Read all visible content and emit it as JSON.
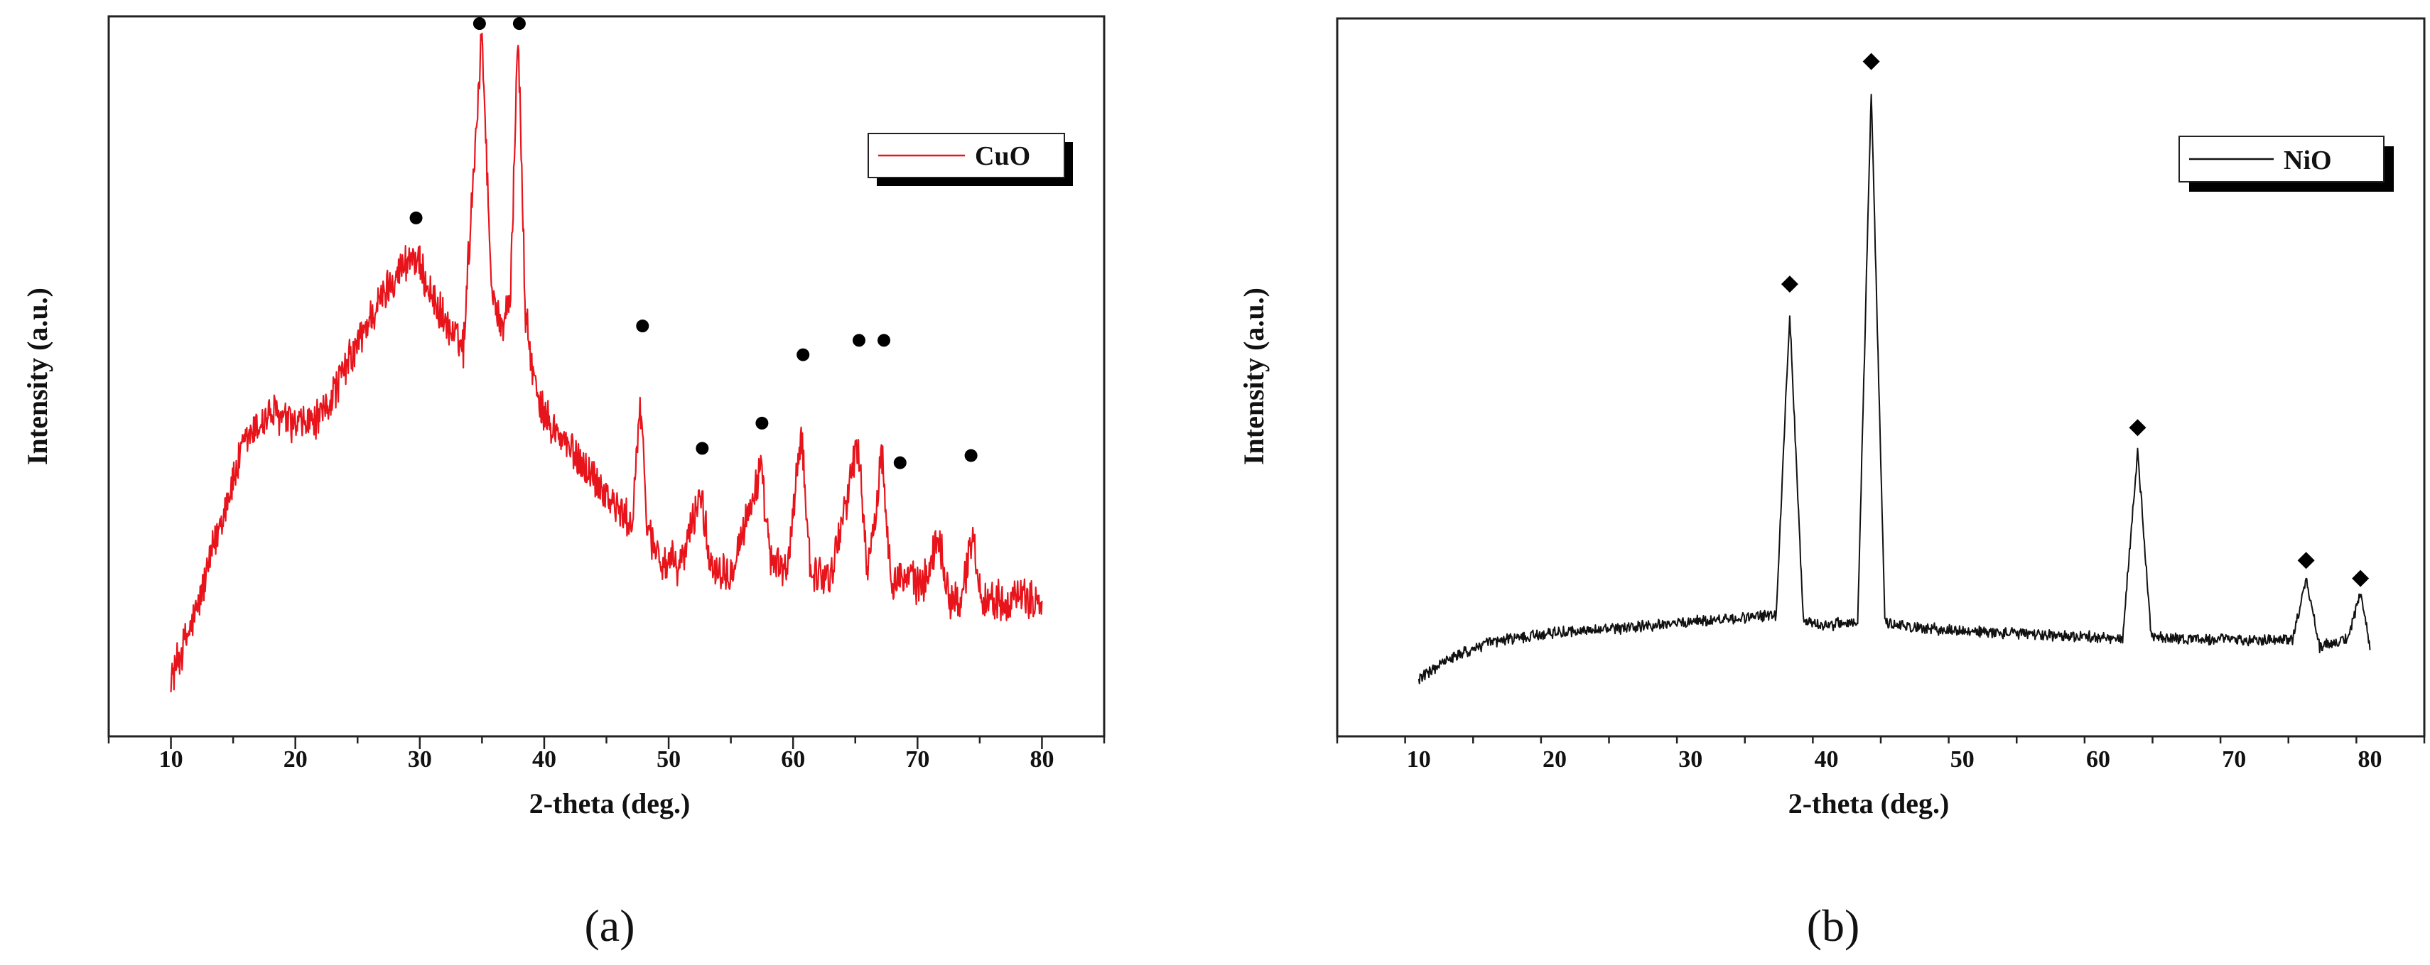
{
  "chart_data": [
    {
      "type": "line",
      "panel_label": "(a)",
      "xlabel": "2-theta (deg.)",
      "ylabel": "Intensity (a.u.)",
      "xlim": [
        5,
        85
      ],
      "ylim": [
        0,
        100
      ],
      "xticks": [
        10,
        20,
        30,
        40,
        50,
        60,
        70,
        80
      ],
      "legend": "CuO",
      "legend_position": "top-right",
      "color": "#e8141b",
      "noise": 3.2,
      "marker": "circle",
      "series": [
        {
          "name": "CuO",
          "x": [
            10,
            12,
            14,
            16,
            18,
            20,
            22,
            24,
            26,
            28,
            29.5,
            31,
            32.5,
            33.5,
            34.3,
            35,
            35.7,
            36.5,
            37.3,
            37.9,
            38.5,
            39.5,
            41,
            44,
            47,
            47.7,
            48.3,
            49.5,
            51,
            52.6,
            53.3,
            55,
            57.4,
            58.2,
            59.5,
            60.7,
            61.4,
            63,
            65.2,
            66,
            66.4,
            67.1,
            67.9,
            69,
            70.5,
            71.7,
            72.6,
            73.5,
            74.4,
            75.2,
            77,
            80
          ],
          "y": [
            8,
            17,
            30,
            41,
            45,
            43,
            44,
            51,
            58,
            64,
            67,
            61,
            56,
            54,
            78,
            98,
            64,
            56,
            62,
            98,
            58,
            46,
            42,
            36,
            29,
            46,
            29,
            24,
            24,
            34,
            24,
            23,
            37,
            24,
            23,
            42,
            23,
            22,
            41,
            23,
            27,
            40,
            22,
            22,
            21,
            28,
            19,
            19,
            28,
            19,
            19,
            19
          ]
        }
      ],
      "peaks": [
        {
          "x": 29.7,
          "y": 72
        },
        {
          "x": 34.8,
          "y": 99
        },
        {
          "x": 38.0,
          "y": 99
        },
        {
          "x": 47.9,
          "y": 57
        },
        {
          "x": 52.7,
          "y": 40
        },
        {
          "x": 57.5,
          "y": 43.5
        },
        {
          "x": 60.8,
          "y": 53
        },
        {
          "x": 65.3,
          "y": 55
        },
        {
          "x": 67.3,
          "y": 55
        },
        {
          "x": 68.6,
          "y": 38
        },
        {
          "x": 74.3,
          "y": 39
        }
      ]
    },
    {
      "type": "line",
      "panel_label": "(b)",
      "xlabel": "2-theta (deg.)",
      "ylabel": "Intensity (a.u.)",
      "xlim": [
        4,
        84
      ],
      "ylim": [
        0,
        100
      ],
      "xticks": [
        10,
        20,
        30,
        40,
        50,
        60,
        70,
        80
      ],
      "legend": "NiO",
      "legend_position": "top-right",
      "color": "#111111",
      "noise": 0.9,
      "marker": "diamond",
      "series": [
        {
          "name": "NiO",
          "x": [
            10,
            12,
            15,
            20,
            25,
            30,
            34,
            36.3,
            37.3,
            38.3,
            40,
            42.3,
            43.3,
            44.3,
            47,
            52,
            58,
            61.8,
            62.9,
            63.9,
            67,
            72,
            74.3,
            75.3,
            76.3,
            78.4,
            79.3,
            80
          ],
          "y": [
            8,
            10.5,
            13,
            14.5,
            15,
            16,
            16.5,
            17,
            59,
            16,
            15.5,
            16,
            90,
            16,
            15,
            14.5,
            14,
            13.5,
            40,
            14,
            13.5,
            13.5,
            13.5,
            22,
            12.5,
            13.5,
            20,
            12.5
          ]
        }
      ],
      "peaks": [
        {
          "x": 37.3,
          "y": 63
        },
        {
          "x": 43.3,
          "y": 94
        },
        {
          "x": 62.9,
          "y": 43
        },
        {
          "x": 75.3,
          "y": 24.5
        },
        {
          "x": 79.3,
          "y": 22
        }
      ]
    }
  ]
}
